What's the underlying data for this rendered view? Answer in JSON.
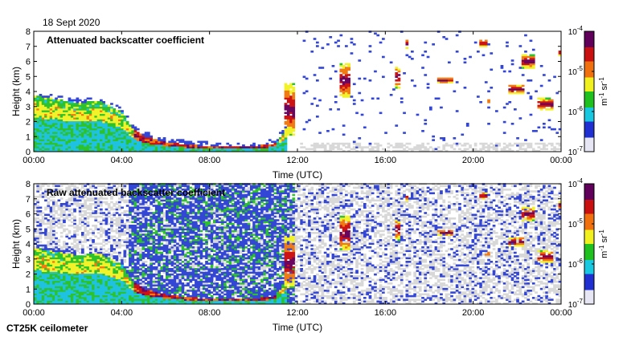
{
  "date": "18 Sept 2020",
  "footer": "CT25K ceilometer",
  "colorbar": {
    "labels": [
      "10-4",
      "10-5",
      "10-6",
      "10-7"
    ],
    "unit": "m-1 sr-1",
    "colors": [
      "#e6e6f5",
      "#2030d0",
      "#19c8e0",
      "#20c020",
      "#f0f020",
      "#f07010",
      "#c81010",
      "#60005a"
    ]
  },
  "chart_data": [
    {
      "type": "heatmap",
      "title": "Attenuated backscatter coefficient",
      "xlabel": "Time (UTC)",
      "ylabel": "Height (km)",
      "xlim": [
        "00:00",
        "24:00"
      ],
      "ylim": [
        0,
        8
      ],
      "x_ticks": [
        "00:00",
        "04:00",
        "08:00",
        "12:00",
        "16:00",
        "20:00",
        "00:00"
      ],
      "y_ticks": [
        0,
        1,
        2,
        3,
        4,
        5,
        6,
        7,
        8
      ],
      "color_scale": "log",
      "color_range": [
        1e-07,
        0.0001
      ],
      "boundary_layer_top_km": [
        [
          0,
          3.7
        ],
        [
          2,
          3.2
        ],
        [
          3,
          3.3
        ],
        [
          4,
          2.6
        ],
        [
          4.5,
          1.5
        ],
        [
          5,
          1.0
        ],
        [
          6,
          0.6
        ],
        [
          7,
          0.4
        ],
        [
          8,
          0.3
        ],
        [
          10,
          0.3
        ],
        [
          11,
          0.5
        ],
        [
          11.5,
          1.5
        ]
      ],
      "cloud_layers": [
        {
          "start_h": 11.3,
          "end_h": 11.8,
          "base_km": 1.0,
          "top_km": 4.5
        },
        {
          "start_h": 13.9,
          "end_h": 14.3,
          "base_km": 3.5,
          "top_km": 5.8
        },
        {
          "start_h": 16.4,
          "end_h": 16.6,
          "base_km": 4.2,
          "top_km": 5.6
        },
        {
          "start_h": 16.8,
          "end_h": 17.0,
          "base_km": 6.8,
          "top_km": 7.4
        },
        {
          "start_h": 18.3,
          "end_h": 19.0,
          "base_km": 4.5,
          "top_km": 4.9
        },
        {
          "start_h": 20.2,
          "end_h": 20.6,
          "base_km": 6.9,
          "top_km": 7.4
        },
        {
          "start_h": 20.5,
          "end_h": 20.7,
          "base_km": 3.2,
          "top_km": 3.4
        },
        {
          "start_h": 21.6,
          "end_h": 22.3,
          "base_km": 3.8,
          "top_km": 4.4
        },
        {
          "start_h": 22.1,
          "end_h": 22.7,
          "base_km": 5.5,
          "top_km": 6.4
        },
        {
          "start_h": 22.9,
          "end_h": 23.6,
          "base_km": 2.7,
          "top_km": 3.5
        },
        {
          "start_h": 23.8,
          "end_h": 24.0,
          "base_km": 6.3,
          "top_km": 6.8
        }
      ]
    },
    {
      "type": "heatmap",
      "title": "Raw attenuated backscatter coefficient",
      "xlabel": "Time (UTC)",
      "ylabel": "Height (km)",
      "xlim": [
        "00:00",
        "24:00"
      ],
      "ylim": [
        0,
        8
      ],
      "x_ticks": [
        "00:00",
        "04:00",
        "08:00",
        "12:00",
        "16:00",
        "20:00",
        "00:00"
      ],
      "y_ticks": [
        0,
        1,
        2,
        3,
        4,
        5,
        6,
        7,
        8
      ],
      "color_scale": "log",
      "color_range": [
        1e-07,
        0.0001
      ]
    }
  ]
}
